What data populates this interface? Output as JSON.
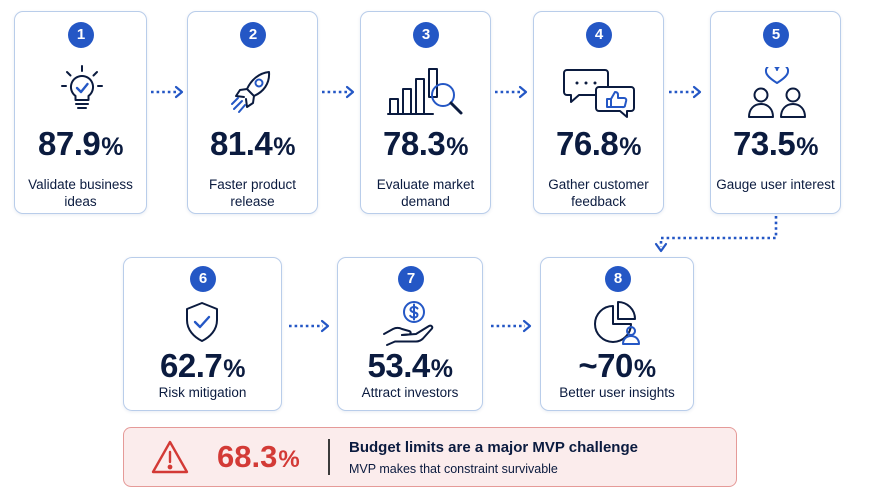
{
  "steps": [
    {
      "number": "1",
      "value": "87.9",
      "unit": "%",
      "label": "Validate business ideas",
      "icon": "lightbulb-check-icon"
    },
    {
      "number": "2",
      "value": "81.4",
      "unit": "%",
      "label": "Faster product release",
      "icon": "rocket-icon"
    },
    {
      "number": "3",
      "value": "78.3",
      "unit": "%",
      "label": "Evaluate market demand",
      "icon": "bar-chart-magnifier-icon"
    },
    {
      "number": "4",
      "value": "76.8",
      "unit": "%",
      "label": "Gather customer feedback",
      "icon": "chat-bubbles-thumbs-up-icon"
    },
    {
      "number": "5",
      "value": "73.5",
      "unit": "%",
      "label": "Gauge user interest",
      "icon": "users-heart-icon"
    },
    {
      "number": "6",
      "value": "62.7",
      "unit": "%",
      "label": "Risk mitigation",
      "icon": "shield-check-icon"
    },
    {
      "number": "7",
      "value": "53.4",
      "unit": "%",
      "label": "Attract investors",
      "icon": "hand-coin-icon"
    },
    {
      "number": "8",
      "value": "~70",
      "unit": "%",
      "label": "Better user insights",
      "icon": "pie-chart-user-icon"
    }
  ],
  "alert": {
    "icon": "warning-triangle-icon",
    "value": "68.3",
    "unit": "%",
    "title": "Budget limits are a major MVP challenge",
    "subtitle": "MVP makes that constraint survivable"
  },
  "colors": {
    "accent": "#2457c5",
    "card_border": "#b9cdea",
    "text": "#0b1b3f",
    "alert_red": "#d33a36",
    "alert_bg": "#fbecec",
    "alert_border": "#e59a98"
  }
}
